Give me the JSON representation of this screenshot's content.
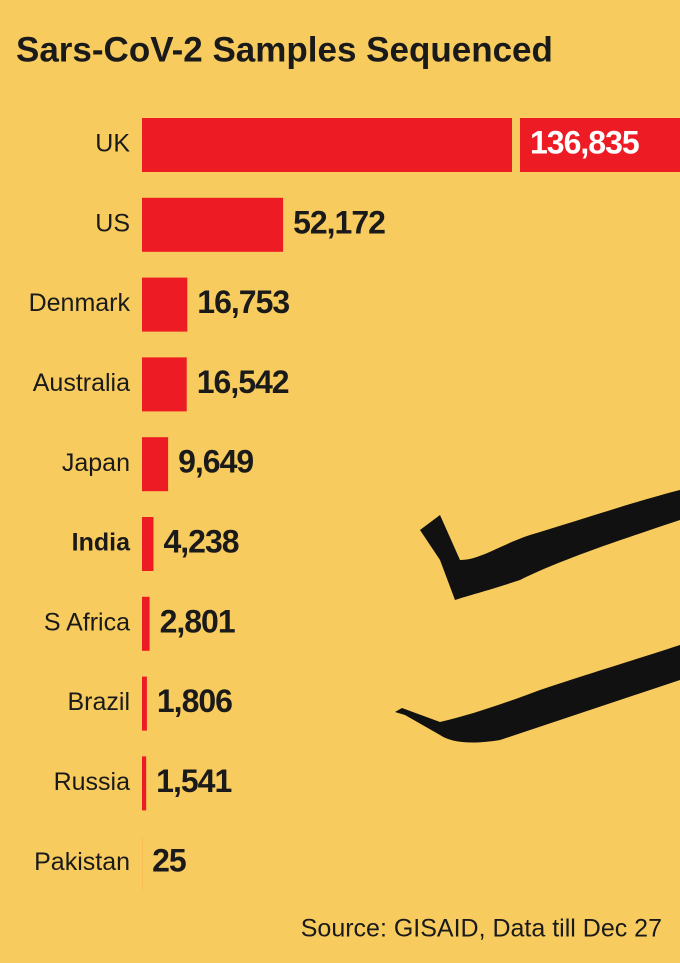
{
  "chart_data": {
    "type": "bar",
    "orientation": "horizontal",
    "title": "Sars-CoV-2 Samples Sequenced",
    "categories": [
      "UK",
      "US",
      "Denmark",
      "Australia",
      "Japan",
      "India",
      "S Africa",
      "Brazil",
      "Russia",
      "Pakistan"
    ],
    "values": [
      136835,
      52172,
      16753,
      16542,
      9649,
      4238,
      2801,
      1806,
      1541,
      25
    ],
    "value_labels": [
      "136,835",
      "52,172",
      "16,753",
      "16,542",
      "9,649",
      "4,238",
      "2,801",
      "1,806",
      "1,541",
      "25"
    ],
    "color": "#ed1c24",
    "source": "Source: GISAID, Data till Dec 27"
  }
}
